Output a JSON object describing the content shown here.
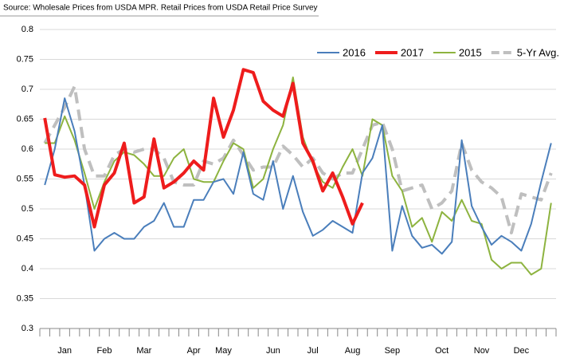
{
  "chart_data": {
    "type": "line",
    "source": "Source:  Wholesale Prices from USDA MPR.  Retail Prices from USDA Retail Price Survey",
    "categories": [
      null,
      null,
      "Jan",
      null,
      null,
      null,
      "Feb",
      null,
      null,
      null,
      "Mar",
      null,
      null,
      null,
      null,
      "Apr",
      null,
      null,
      "May",
      null,
      null,
      null,
      null,
      "Jun",
      null,
      null,
      null,
      "Jul",
      null,
      null,
      null,
      "Aug",
      null,
      null,
      null,
      "Sep",
      null,
      null,
      null,
      null,
      "Oct",
      null,
      null,
      null,
      "Nov",
      null,
      null,
      null,
      "Dec",
      null,
      null,
      null
    ],
    "series": [
      {
        "name": "2016",
        "color": "#4a7ebb",
        "width": 2,
        "dash": false,
        "values": [
          0.54,
          0.6,
          0.685,
          0.63,
          0.54,
          0.43,
          0.45,
          0.46,
          0.45,
          0.45,
          0.47,
          0.48,
          0.51,
          0.47,
          0.47,
          0.515,
          0.515,
          0.545,
          0.55,
          0.525,
          0.595,
          0.525,
          0.515,
          0.58,
          0.5,
          0.555,
          0.495,
          0.455,
          0.465,
          0.48,
          0.47,
          0.46,
          0.56,
          0.585,
          0.64,
          0.43,
          0.505,
          0.455,
          0.435,
          0.44,
          0.425,
          0.445,
          0.615,
          0.505,
          0.47,
          0.44,
          0.455,
          0.445,
          0.43,
          0.475,
          0.545,
          0.61
        ]
      },
      {
        "name": "2017",
        "color": "#ee1c1c",
        "width": 4,
        "dash": false,
        "values": [
          0.652,
          0.557,
          0.553,
          0.555,
          0.54,
          0.47,
          0.54,
          0.56,
          0.61,
          0.51,
          0.52,
          0.617,
          0.535,
          0.545,
          0.56,
          0.58,
          0.565,
          0.685,
          0.62,
          0.665,
          0.733,
          0.728,
          0.68,
          0.665,
          0.655,
          0.71,
          0.61,
          0.58,
          0.53,
          0.56,
          0.52,
          0.475,
          0.51,
          null,
          null,
          null,
          null,
          null,
          null,
          null,
          null,
          null,
          null,
          null,
          null,
          null,
          null,
          null,
          null,
          null,
          null,
          null
        ]
      },
      {
        "name": "2015",
        "color": "#8db33f",
        "width": 2,
        "dash": false,
        "values": [
          0.61,
          0.61,
          0.655,
          0.615,
          0.56,
          0.5,
          0.545,
          0.58,
          0.595,
          0.59,
          0.575,
          0.555,
          0.555,
          0.585,
          0.6,
          0.55,
          0.545,
          0.545,
          0.58,
          0.61,
          0.6,
          0.535,
          0.55,
          0.6,
          0.64,
          0.72,
          0.62,
          0.575,
          0.545,
          0.535,
          0.57,
          0.6,
          0.555,
          0.65,
          0.64,
          0.555,
          0.53,
          0.47,
          0.485,
          0.445,
          0.495,
          0.48,
          0.515,
          0.48,
          0.475,
          0.415,
          0.4,
          0.41,
          0.41,
          0.39,
          0.4,
          0.51
        ]
      },
      {
        "name": "5-Yr Avg.",
        "color": "#bfbfbf",
        "width": 4,
        "dash": true,
        "values": [
          0.61,
          0.64,
          0.67,
          0.705,
          0.6,
          0.555,
          0.555,
          0.59,
          0.6,
          0.595,
          0.6,
          0.6,
          0.585,
          0.545,
          0.54,
          0.54,
          0.58,
          0.575,
          0.585,
          0.615,
          0.59,
          0.565,
          0.57,
          0.57,
          0.605,
          0.59,
          0.57,
          0.585,
          0.56,
          0.55,
          0.56,
          0.56,
          0.6,
          0.64,
          0.645,
          0.6,
          0.53,
          0.535,
          0.54,
          0.5,
          0.51,
          0.53,
          0.61,
          0.565,
          0.545,
          0.535,
          0.52,
          0.46,
          0.525,
          0.52,
          0.515,
          0.56
        ]
      }
    ],
    "ylim": [
      0.3,
      0.8
    ],
    "yticks": [
      0.3,
      0.35,
      0.4,
      0.45,
      0.5,
      0.55,
      0.6,
      0.65,
      0.7,
      0.75,
      0.8
    ],
    "grid": true,
    "legend": "top-right"
  }
}
